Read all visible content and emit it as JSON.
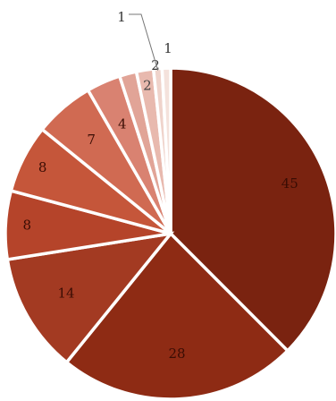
{
  "chart_data": {
    "type": "pie",
    "title": "",
    "values": [
      45,
      28,
      14,
      8,
      8,
      7,
      4,
      2,
      2,
      1,
      1
    ],
    "labels": [
      "45",
      "28",
      "14",
      "8",
      "8",
      "7",
      "4",
      "2",
      "2",
      "1",
      "1"
    ],
    "colors": [
      "#7a2310",
      "#8e2b14",
      "#a33a22",
      "#b5442a",
      "#c5563a",
      "#d06a52",
      "#d98271",
      "#e1a497",
      "#e8b9ae",
      "#efd3cb",
      "#f4e2dc"
    ],
    "label_colors": [
      "#3a0d04",
      "#3a0d04",
      "#3a0d04",
      "#3a0d04",
      "#3a0d04",
      "#3a0d04",
      "#3a0d04",
      "#444444",
      "#444444",
      "#444444",
      "#444444"
    ],
    "start_angle_deg": 0,
    "direction": "clockwise"
  }
}
